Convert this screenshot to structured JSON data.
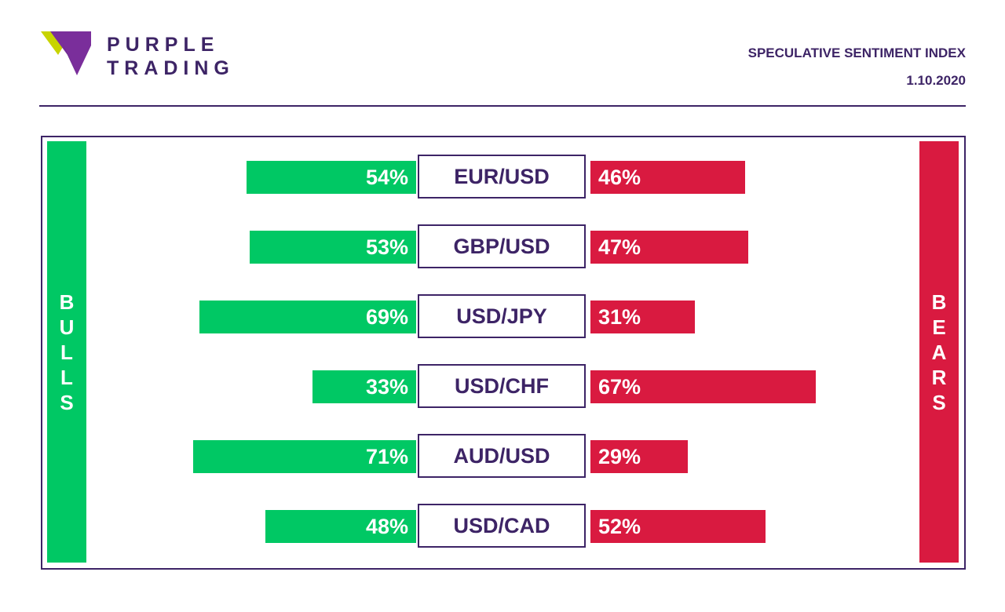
{
  "brand": {
    "line1": "PURPLE",
    "line2": "TRADING",
    "primary_color": "#3d2466",
    "logo_colors": [
      "#c8d400",
      "#7a2e9b",
      "#3d2466"
    ]
  },
  "header": {
    "title": "SPECULATIVE SENTIMENT INDEX",
    "date": "1.10.2020"
  },
  "sides": {
    "bulls_label": "BULLS",
    "bears_label": "BEARS"
  },
  "colors": {
    "bulls": "#00c864",
    "bears": "#d91a40"
  },
  "chart_data": {
    "type": "bar",
    "orientation": "horizontal-diverging",
    "categories": [
      "EUR/USD",
      "GBP/USD",
      "USD/JPY",
      "USD/CHF",
      "AUD/USD",
      "USD/CAD"
    ],
    "series": [
      {
        "name": "BULLS",
        "values": [
          54,
          53,
          69,
          33,
          71,
          48
        ]
      },
      {
        "name": "BEARS",
        "values": [
          46,
          47,
          31,
          67,
          29,
          52
        ]
      }
    ],
    "value_suffix": "%"
  }
}
